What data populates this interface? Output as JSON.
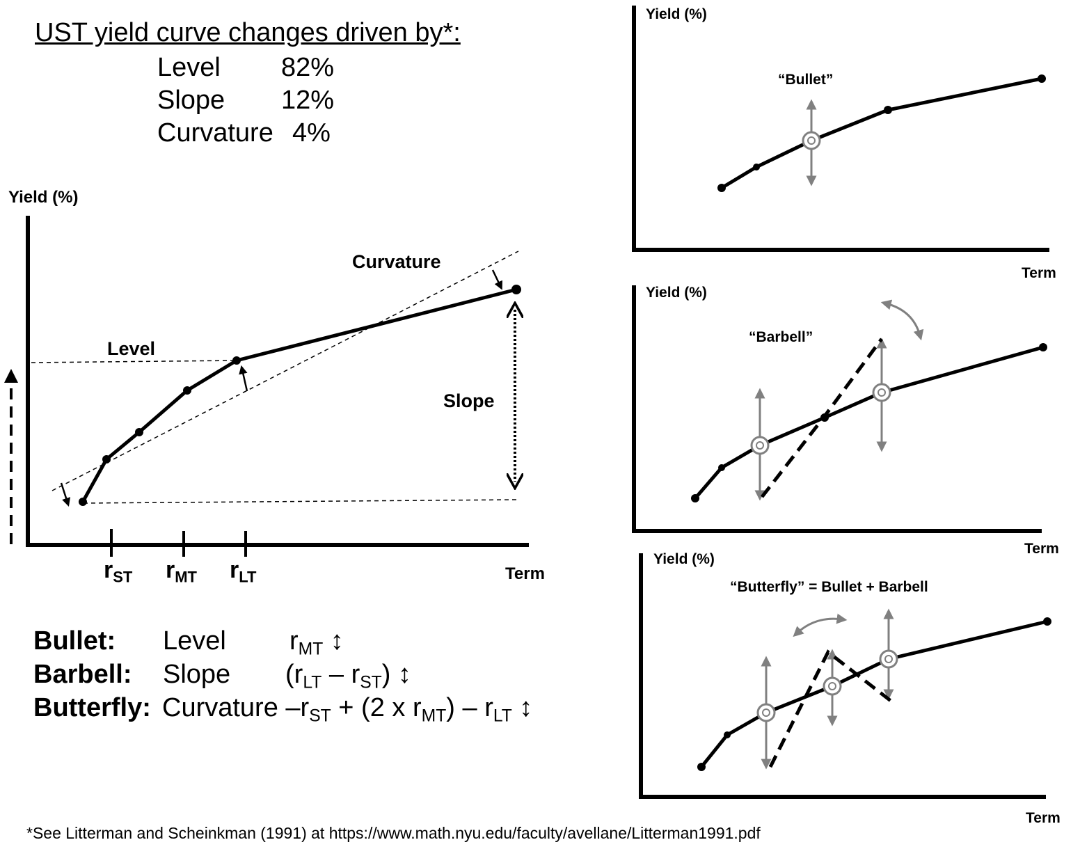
{
  "summary": {
    "heading": "UST yield curve changes driven by*:",
    "rows": [
      {
        "label": "Level",
        "value": "82%"
      },
      {
        "label": "Slope",
        "value": "12%"
      },
      {
        "label": "Curvature",
        "value": "4%"
      }
    ]
  },
  "main_chart": {
    "ylabel": "Yield (%)",
    "xlabel": "Term",
    "ticks": [
      {
        "base": "r",
        "sub": "ST"
      },
      {
        "base": "r",
        "sub": "MT"
      },
      {
        "base": "r",
        "sub": "LT"
      }
    ],
    "annotations": {
      "curvature": "Curvature",
      "level": "Level",
      "slope": "Slope"
    }
  },
  "definitions": [
    {
      "name": "Bullet:",
      "factor": "Level"
    },
    {
      "name": "Barbell:",
      "factor": "Slope"
    },
    {
      "name": "Butterfly:",
      "factor": "Curvature"
    }
  ],
  "formulas": {
    "r": "r",
    "st": "ST",
    "mt": "MT",
    "lt": "LT",
    "arrow": "↕",
    "minus": "–",
    "open_paren": "(",
    "close_paren": ")",
    "plus_two_x": " + (2 x ",
    "close_minus": ") – "
  },
  "small_charts": [
    {
      "ylabel": "Yield (%)",
      "xlabel": "Term",
      "title": "“Bullet”"
    },
    {
      "ylabel": "Yield (%)",
      "xlabel": "Term",
      "title": "“Barbell”"
    },
    {
      "ylabel": "Yield (%)",
      "xlabel": "Term",
      "title": "“Butterfly” = Bullet + Barbell"
    }
  ],
  "footnote": "*See Litterman and Scheinkman (1991) at https://www.math.nyu.edu/faculty/avellane/Litterman1991.pdf",
  "colors": {
    "ink": "#000000",
    "gray_arrow": "#808080"
  }
}
